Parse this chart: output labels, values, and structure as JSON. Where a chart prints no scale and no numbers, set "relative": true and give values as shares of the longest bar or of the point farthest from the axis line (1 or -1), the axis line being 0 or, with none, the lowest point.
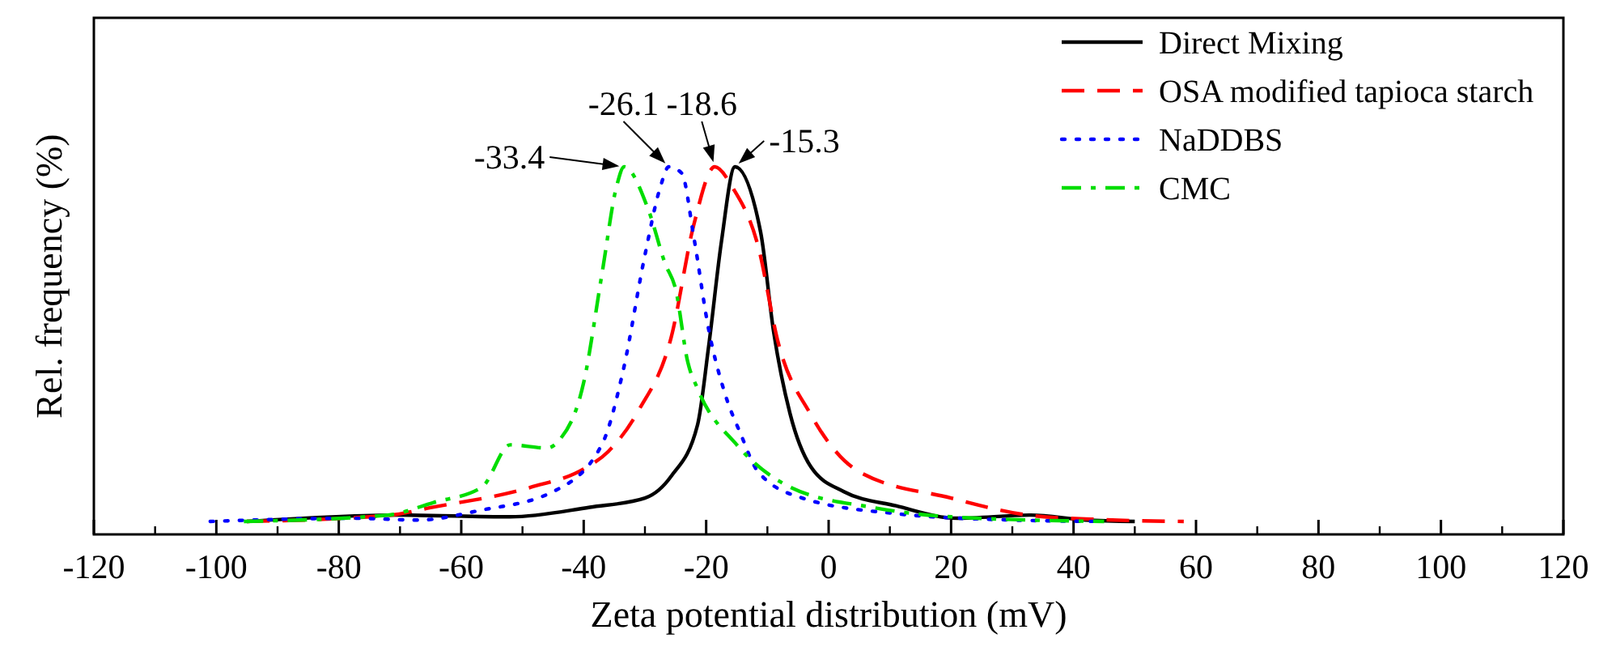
{
  "chart_data": {
    "type": "line",
    "relative": true,
    "xlabel": "Zeta potential distribution (mV)",
    "ylabel": "Rel. frequency (%)",
    "xlim": [
      -120,
      120
    ],
    "xticks": [
      -120,
      -100,
      -80,
      -60,
      -40,
      -20,
      0,
      20,
      40,
      60,
      80,
      100,
      120
    ],
    "legend": "top right",
    "grid": false,
    "series": [
      {
        "name": "Direct Mixing",
        "color": "#000000",
        "line_style": "solid",
        "x": [
          -95,
          -70,
          -52,
          -39,
          -30,
          -25.7,
          -21.4,
          -19.6,
          -17.5,
          -15.3,
          -11.1,
          -9,
          -6.3,
          -2.9,
          2.5,
          11,
          21,
          33,
          42,
          50
        ],
        "values": [
          0,
          0.018,
          0.013,
          0.04,
          0.066,
          0.128,
          0.273,
          0.493,
          0.79,
          1,
          0.815,
          0.537,
          0.304,
          0.154,
          0.084,
          0.044,
          0.009,
          0.018,
          0.004,
          0
        ]
      },
      {
        "name": "OSA modified tapioca starch",
        "color": "#ff0000",
        "line_style": "dashed",
        "x": [
          -95,
          -72,
          -65,
          -48.7,
          -40,
          -36,
          -31,
          -25.7,
          -22,
          -18.6,
          -15.6,
          -11.6,
          -8.2,
          -2.9,
          5,
          20,
          33,
          45,
          58
        ],
        "values": [
          0,
          0.017,
          0.039,
          0.096,
          0.148,
          0.197,
          0.314,
          0.52,
          0.838,
          1,
          0.939,
          0.782,
          0.502,
          0.301,
          0.14,
          0.066,
          0.017,
          0.005,
          0
        ]
      },
      {
        "name": "NaDDBS",
        "color": "#0000ff",
        "line_style": "dotted",
        "x": [
          -101,
          -78,
          -67,
          -57,
          -45,
          -37,
          -33.6,
          -30,
          -27.5,
          -26.1,
          -24,
          -22,
          -19.6,
          -17,
          -14.3,
          -11.6,
          -4.5,
          11,
          30,
          45
        ],
        "values": [
          0,
          0.009,
          0.004,
          0.031,
          0.084,
          0.218,
          0.422,
          0.751,
          0.942,
          1,
          0.982,
          0.8,
          0.542,
          0.364,
          0.244,
          0.142,
          0.067,
          0.022,
          0.004,
          0
        ]
      },
      {
        "name": "CMC",
        "color": "#00dd00",
        "line_style": "dashdot",
        "x": [
          -95.5,
          -72,
          -64.6,
          -56.6,
          -52,
          -46,
          -44,
          -40,
          -37,
          -34.6,
          -33.4,
          -29.4,
          -26.7,
          -25,
          -23,
          -21.4,
          -15,
          -6.3,
          7,
          20,
          45
        ],
        "values": [
          0,
          0.018,
          0.053,
          0.097,
          0.216,
          0.207,
          0.229,
          0.392,
          0.7,
          0.947,
          1,
          0.877,
          0.727,
          0.656,
          0.449,
          0.374,
          0.216,
          0.097,
          0.04,
          0.013,
          0
        ]
      }
    ],
    "annotations": [
      {
        "text": "-33.4",
        "x": -33.4,
        "y": 1
      },
      {
        "text": "-26.1",
        "x": -26.1,
        "y": 1
      },
      {
        "text": "-18.6",
        "x": -18.6,
        "y": 1
      },
      {
        "text": "-15.3",
        "x": -15.3,
        "y": 1
      }
    ]
  }
}
